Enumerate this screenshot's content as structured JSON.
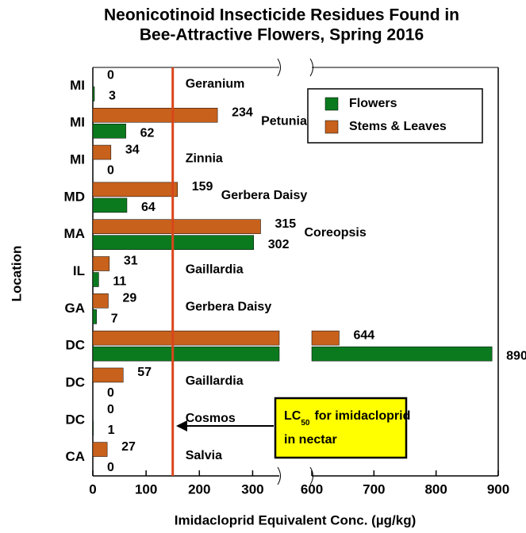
{
  "chart_data": {
    "type": "bar",
    "orientation": "horizontal",
    "title": [
      "Neonicotinoid Insecticide Residues Found in",
      "Bee-Attractive Flowers, Spring 2016"
    ],
    "x_label": "Imidacloprid Equivalent Conc. (µg/kg)",
    "y_label": "Location",
    "categories": [
      "MI",
      "MI",
      "MI",
      "MD",
      "MA",
      "IL",
      "GA",
      "DC",
      "DC",
      "DC",
      "CA"
    ],
    "plants": [
      "Geranium",
      "Petunia",
      "Zinnia",
      "Gerbera Daisy",
      "Coreopsis",
      "Gaillardia",
      "Gerbera Daisy",
      "Salvia",
      "Gaillardia",
      "Cosmos",
      "Salvia"
    ],
    "series": [
      {
        "name": "Flowers",
        "color": "#0b7a1f",
        "values": [
          3,
          62,
          0,
          64,
          302,
          11,
          7,
          890,
          0,
          1,
          0
        ]
      },
      {
        "name": "Stems & Leaves",
        "color": "#c8611c",
        "values": [
          0,
          234,
          34,
          159,
          315,
          31,
          29,
          644,
          57,
          0,
          27
        ]
      }
    ],
    "xlim": [
      0,
      900
    ],
    "xbreak": [
      350,
      600
    ],
    "xticks": [
      0,
      100,
      200,
      300,
      600,
      700,
      800,
      900
    ],
    "reference_line": {
      "value": 150,
      "color": "#d9461a"
    },
    "annotation": {
      "text": "LC",
      "subscript": "50",
      "text_after": "for imidacloprid",
      "line2": "in nectar",
      "color": "#ffff00"
    },
    "legend": "upper right"
  }
}
